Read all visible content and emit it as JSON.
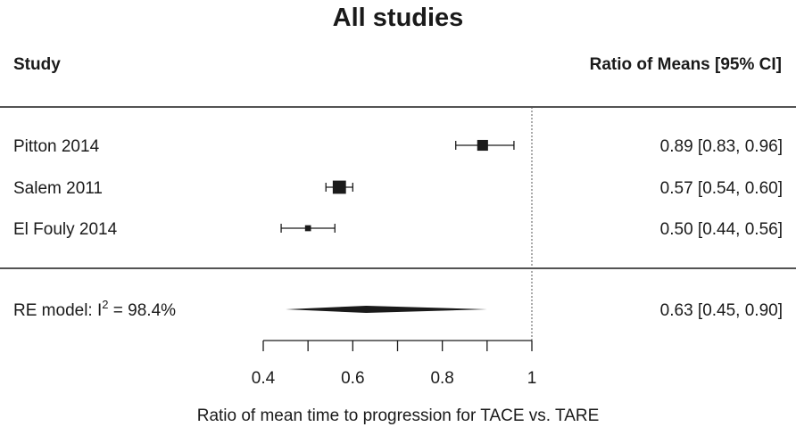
{
  "header": {
    "title": "All studies",
    "col_study": "Study",
    "col_estimate": "Ratio of Means [95% CI]"
  },
  "chart_data": {
    "type": "forest",
    "title": "All studies",
    "xlabel": "Ratio of mean time to progression  for TACE vs. TARE",
    "xlim": [
      0.4,
      1.0
    ],
    "xticks": [
      0.4,
      0.6,
      0.8,
      1.0
    ],
    "xtick_labels": [
      "0.4",
      "0.6",
      "0.8",
      "1"
    ],
    "reference_line": 1.0,
    "studies": [
      {
        "label": "Pitton 2014",
        "estimate": 0.89,
        "ci_low": 0.83,
        "ci_high": 0.96,
        "text": "0.89 [0.83, 0.96]",
        "weight": 0.45
      },
      {
        "label": "Salem 2011",
        "estimate": 0.57,
        "ci_low": 0.54,
        "ci_high": 0.6,
        "text": "0.57 [0.54, 0.60]",
        "weight": 0.6
      },
      {
        "label": "El Fouly 2014",
        "estimate": 0.5,
        "ci_low": 0.44,
        "ci_high": 0.56,
        "text": "0.50 [0.44, 0.56]",
        "weight": 0.15
      }
    ],
    "summary": {
      "label_prefix": "RE model: I",
      "label_sup": "2",
      "label_suffix": " = 98.4%",
      "estimate": 0.63,
      "ci_low": 0.45,
      "ci_high": 0.9,
      "text": "0.63 [0.45, 0.90]"
    }
  }
}
